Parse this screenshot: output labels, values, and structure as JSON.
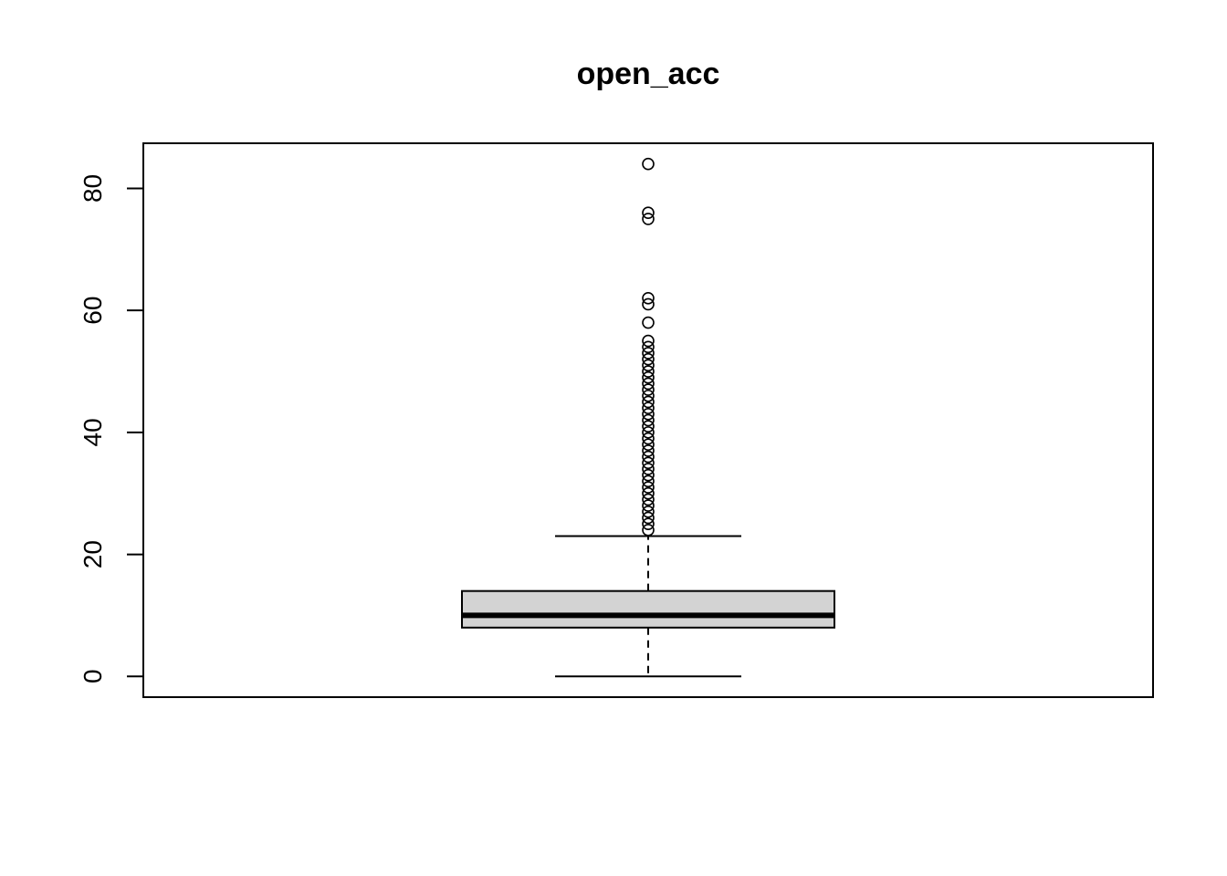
{
  "chart_data": {
    "type": "boxplot",
    "title": "open_acc",
    "xlabel": "",
    "ylabel": "",
    "ylim": [
      -3.4,
      87.4
    ],
    "yticks": [
      0,
      20,
      40,
      60,
      80
    ],
    "ytick_labels": [
      "0",
      "20",
      "40",
      "60",
      "80"
    ],
    "grid": false,
    "legend": "none",
    "box": {
      "whisker_low": 0,
      "q1": 8,
      "median": 10,
      "q3": 14,
      "whisker_high": 23,
      "outliers": [
        24,
        25,
        26,
        27,
        28,
        29,
        30,
        31,
        32,
        33,
        34,
        35,
        36,
        37,
        38,
        39,
        40,
        41,
        42,
        43,
        44,
        45,
        46,
        47,
        48,
        49,
        50,
        51,
        52,
        53,
        54,
        55,
        58,
        61,
        62,
        75,
        76,
        84
      ]
    },
    "colors": {
      "box_fill": "#d3d3d3",
      "line": "#000000"
    }
  }
}
